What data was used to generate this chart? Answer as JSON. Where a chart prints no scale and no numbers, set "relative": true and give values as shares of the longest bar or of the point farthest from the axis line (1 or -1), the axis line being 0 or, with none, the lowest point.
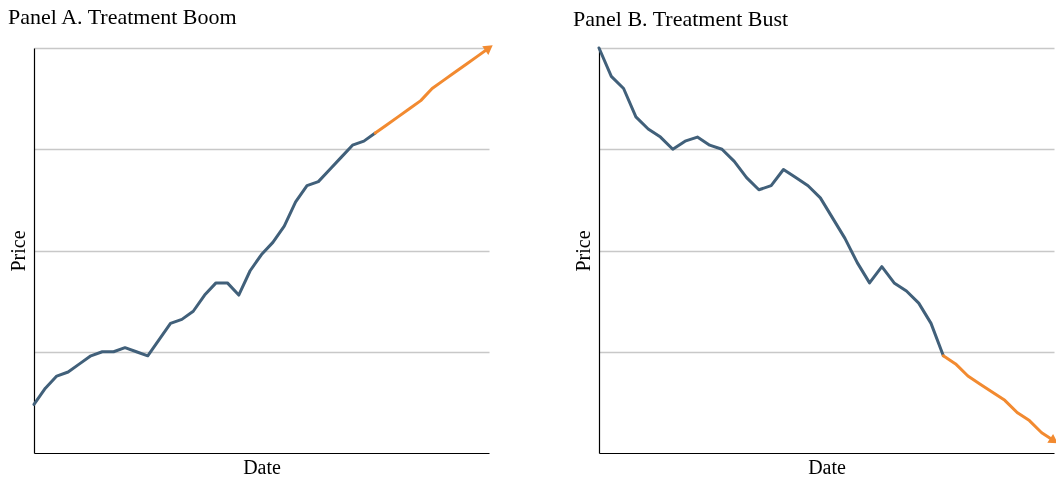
{
  "chart_data": [
    {
      "type": "line",
      "title": "Panel A. Treatment Boom",
      "xlabel": "Date",
      "ylabel": "Price",
      "relative": true,
      "grid": "y",
      "categories": [
        null,
        null,
        null,
        null,
        null,
        null,
        null,
        null,
        null,
        null,
        null,
        null,
        null,
        null,
        null,
        null,
        null,
        null,
        null,
        null,
        null,
        null,
        null,
        null,
        null,
        null,
        null,
        null,
        null,
        null,
        null,
        null,
        null,
        null,
        null,
        null,
        null,
        null,
        null,
        null,
        null
      ],
      "series": [
        {
          "color": "#41607a",
          "values": [
            0.12,
            0.16,
            0.19,
            0.2,
            0.22,
            0.24,
            0.25,
            0.25,
            0.26,
            0.25,
            0.24,
            0.28,
            0.32,
            0.33,
            0.35,
            0.39,
            0.42,
            0.42,
            0.39,
            0.45,
            0.49,
            0.52,
            0.56,
            0.62,
            0.66,
            0.67,
            0.7,
            0.73,
            0.76,
            0.77,
            0.79,
            null,
            null,
            null,
            null,
            null,
            null,
            null,
            null,
            null,
            null
          ]
        },
        {
          "color": "#f28a30",
          "values": [
            null,
            null,
            null,
            null,
            null,
            null,
            null,
            null,
            null,
            null,
            null,
            null,
            null,
            null,
            null,
            null,
            null,
            null,
            null,
            null,
            null,
            null,
            null,
            null,
            null,
            null,
            null,
            null,
            null,
            null,
            0.79,
            0.81,
            0.83,
            0.85,
            0.87,
            0.9,
            0.92,
            0.94,
            0.96,
            0.98,
            1.0
          ]
        }
      ]
    },
    {
      "type": "line",
      "title": "Panel B. Treatment Bust",
      "xlabel": "Date",
      "ylabel": "Price",
      "relative": true,
      "grid": "y",
      "categories": [
        null,
        null,
        null,
        null,
        null,
        null,
        null,
        null,
        null,
        null,
        null,
        null,
        null,
        null,
        null,
        null,
        null,
        null,
        null,
        null,
        null,
        null,
        null,
        null,
        null,
        null,
        null,
        null,
        null,
        null,
        null,
        null,
        null,
        null,
        null,
        null,
        null,
        null
      ],
      "series": [
        {
          "color": "#41607a",
          "values": [
            1.0,
            0.93,
            0.9,
            0.83,
            0.8,
            0.78,
            0.75,
            0.77,
            0.78,
            0.76,
            0.75,
            0.72,
            0.68,
            0.65,
            0.66,
            0.7,
            0.68,
            0.66,
            0.63,
            0.58,
            0.53,
            0.47,
            0.42,
            0.46,
            0.42,
            0.4,
            0.37,
            0.32,
            0.24,
            null,
            null,
            null,
            null,
            null,
            null,
            null,
            null,
            null
          ]
        },
        {
          "color": "#f28a30",
          "values": [
            null,
            null,
            null,
            null,
            null,
            null,
            null,
            null,
            null,
            null,
            null,
            null,
            null,
            null,
            null,
            null,
            null,
            null,
            null,
            null,
            null,
            null,
            null,
            null,
            null,
            null,
            null,
            null,
            0.24,
            0.22,
            0.19,
            0.17,
            0.15,
            0.13,
            0.1,
            0.08,
            0.05,
            0.03
          ]
        }
      ]
    }
  ]
}
